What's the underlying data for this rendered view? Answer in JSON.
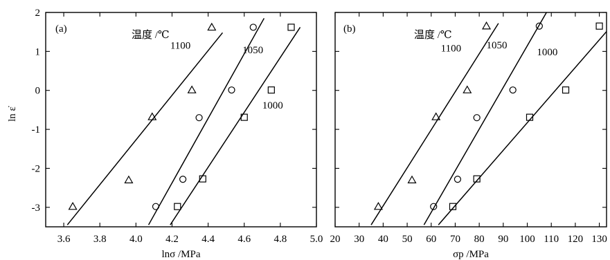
{
  "chart_data": [
    {
      "type": "scatter",
      "panel_label": "(a)",
      "xlabel": "lnσ /MPa",
      "ylabel": "ln ε̇",
      "xlim": [
        3.5,
        5.0
      ],
      "ylim": [
        -3.5,
        2.0
      ],
      "xticks": [
        3.6,
        3.8,
        4.0,
        4.2,
        4.4,
        4.6,
        4.8,
        5.0
      ],
      "xtick_labels": [
        "3.6",
        "3.8",
        "4.0",
        "4.2",
        "4.4",
        "4.6",
        "4.8",
        "5.0"
      ],
      "yticks": [
        -3,
        -2,
        -1,
        0,
        1,
        2
      ],
      "ytick_labels": [
        "-3",
        "-2",
        "-1",
        "0",
        "1",
        "2"
      ],
      "legend_title": "温度 /℃",
      "series": [
        {
          "name": "1100",
          "marker": "triangle",
          "points": [
            [
              3.65,
              -2.98
            ],
            [
              3.96,
              -2.3
            ],
            [
              4.09,
              -0.68
            ],
            [
              4.31,
              0.01
            ],
            [
              4.42,
              1.62
            ]
          ],
          "fit": [
            [
              3.62,
              -3.45
            ],
            [
              4.48,
              1.48
            ]
          ]
        },
        {
          "name": "1050",
          "marker": "circle",
          "points": [
            [
              4.11,
              -2.98
            ],
            [
              4.26,
              -2.28
            ],
            [
              4.35,
              -0.7
            ],
            [
              4.53,
              0.01
            ],
            [
              4.65,
              1.62
            ]
          ],
          "fit": [
            [
              4.07,
              -3.45
            ],
            [
              4.71,
              1.85
            ]
          ]
        },
        {
          "name": "1000",
          "marker": "square",
          "points": [
            [
              4.23,
              -2.98
            ],
            [
              4.37,
              -2.27
            ],
            [
              4.6,
              -0.69
            ],
            [
              4.75,
              0.01
            ],
            [
              4.86,
              1.62
            ]
          ],
          "fit": [
            [
              4.19,
              -3.45
            ],
            [
              4.91,
              1.62
            ]
          ]
        }
      ],
      "annotations": [
        {
          "text": "1100",
          "x": 4.19,
          "y": 1.07
        },
        {
          "text": "1050",
          "x": 4.59,
          "y": 0.95
        },
        {
          "text": "1000",
          "x": 4.7,
          "y": -0.47
        }
      ]
    },
    {
      "type": "scatter",
      "panel_label": "(b)",
      "xlabel": "σp /MPa",
      "ylabel": "",
      "xlim": [
        20,
        133
      ],
      "ylim": [
        -3.5,
        2.0
      ],
      "xticks": [
        20,
        30,
        40,
        50,
        60,
        70,
        80,
        90,
        100,
        110,
        120,
        130
      ],
      "xtick_labels": [
        "20",
        "30",
        "40",
        "50",
        "60",
        "70",
        "80",
        "90",
        "100",
        "110",
        "120",
        "130"
      ],
      "yticks": [
        -3,
        -2,
        -1,
        0,
        1,
        2
      ],
      "legend_title": "温度 /℃",
      "series": [
        {
          "name": "1100",
          "marker": "triangle",
          "points": [
            [
              38,
              -2.98
            ],
            [
              52,
              -2.3
            ],
            [
              62,
              -0.68
            ],
            [
              75,
              0.01
            ],
            [
              83,
              1.65
            ]
          ],
          "fit": [
            [
              35,
              -3.45
            ],
            [
              88,
              1.72
            ]
          ]
        },
        {
          "name": "1050",
          "marker": "circle",
          "points": [
            [
              61,
              -2.98
            ],
            [
              71,
              -2.28
            ],
            [
              79,
              -0.7
            ],
            [
              94,
              0.01
            ],
            [
              105,
              1.65
            ]
          ],
          "fit": [
            [
              57,
              -3.45
            ],
            [
              108,
              2.0
            ]
          ]
        },
        {
          "name": "1000",
          "marker": "square",
          "points": [
            [
              69,
              -2.98
            ],
            [
              79,
              -2.27
            ],
            [
              101,
              -0.69
            ],
            [
              116,
              0.01
            ],
            [
              130,
              1.65
            ]
          ],
          "fit": [
            [
              63,
              -3.45
            ],
            [
              133,
              1.51
            ]
          ]
        }
      ],
      "annotations": [
        {
          "text": "1100",
          "x": 64,
          "y": 1.0
        },
        {
          "text": "1050",
          "x": 83,
          "y": 1.08
        },
        {
          "text": "1000",
          "x": 104,
          "y": 0.9
        }
      ]
    }
  ]
}
